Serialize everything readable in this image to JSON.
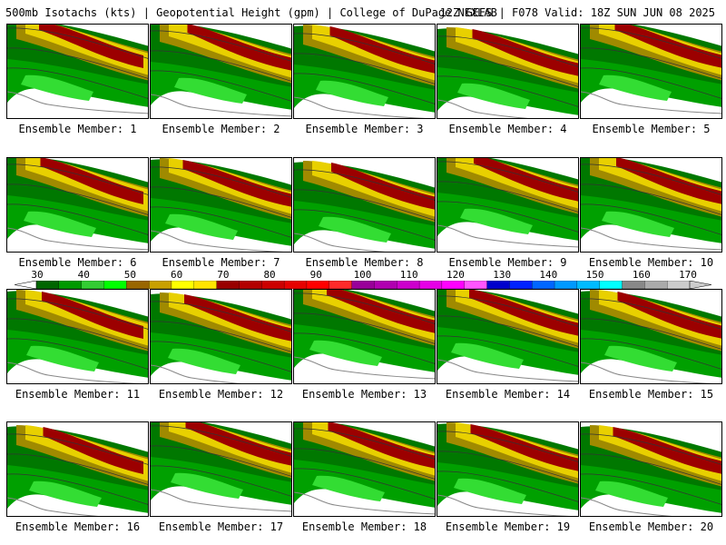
{
  "header": {
    "title": "500mb Isotachs (kts) | Geopotential Height (gpm) | College of DuPage NEXLAB",
    "run_info": "12Z GEFS | F078 Valid: 18Z SUN JUN 08 2025"
  },
  "member_label_prefix": "Ensemble Member: ",
  "members": [
    {
      "label": "Ensemble Member: 1"
    },
    {
      "label": "Ensemble Member: 2"
    },
    {
      "label": "Ensemble Member: 3"
    },
    {
      "label": "Ensemble Member: 4"
    },
    {
      "label": "Ensemble Member: 5"
    },
    {
      "label": "Ensemble Member: 6"
    },
    {
      "label": "Ensemble Member: 7"
    },
    {
      "label": "Ensemble Member: 8"
    },
    {
      "label": "Ensemble Member: 9"
    },
    {
      "label": "Ensemble Member: 10"
    },
    {
      "label": "Ensemble Member: 11"
    },
    {
      "label": "Ensemble Member: 12"
    },
    {
      "label": "Ensemble Member: 13"
    },
    {
      "label": "Ensemble Member: 14"
    },
    {
      "label": "Ensemble Member: 15"
    },
    {
      "label": "Ensemble Member: 16"
    },
    {
      "label": "Ensemble Member: 17"
    },
    {
      "label": "Ensemble Member: 18"
    },
    {
      "label": "Ensemble Member: 19"
    },
    {
      "label": "Ensemble Member: 20"
    }
  ],
  "colorbar": {
    "ticks": [
      "30",
      "40",
      "50",
      "60",
      "70",
      "80",
      "90",
      "100",
      "110",
      "120",
      "130",
      "140",
      "150",
      "160",
      "170"
    ],
    "colors": [
      "#006600",
      "#009900",
      "#33cc33",
      "#00ff00",
      "#996600",
      "#c8a000",
      "#ffff00",
      "#ffe400",
      "#990000",
      "#b30000",
      "#cc0000",
      "#e60000",
      "#ff0000",
      "#ff2a2a",
      "#990099",
      "#b000b0",
      "#cc00cc",
      "#e600e6",
      "#ff00ff",
      "#ff55ff",
      "#0000cc",
      "#0022ff",
      "#0066ff",
      "#0099ff",
      "#00bbff",
      "#00ffff",
      "#888888",
      "#aaaaaa",
      "#cccccc"
    ]
  },
  "legend_colors": {
    "white": "#ffffff",
    "green_dark": "#007800",
    "green_mid": "#00a000",
    "green_light": "#33dd33",
    "olive": "#a08a00",
    "yellow": "#e8d000",
    "yellow_bright": "#ffff00",
    "red_dark": "#9c0000",
    "coast": "#888888"
  }
}
